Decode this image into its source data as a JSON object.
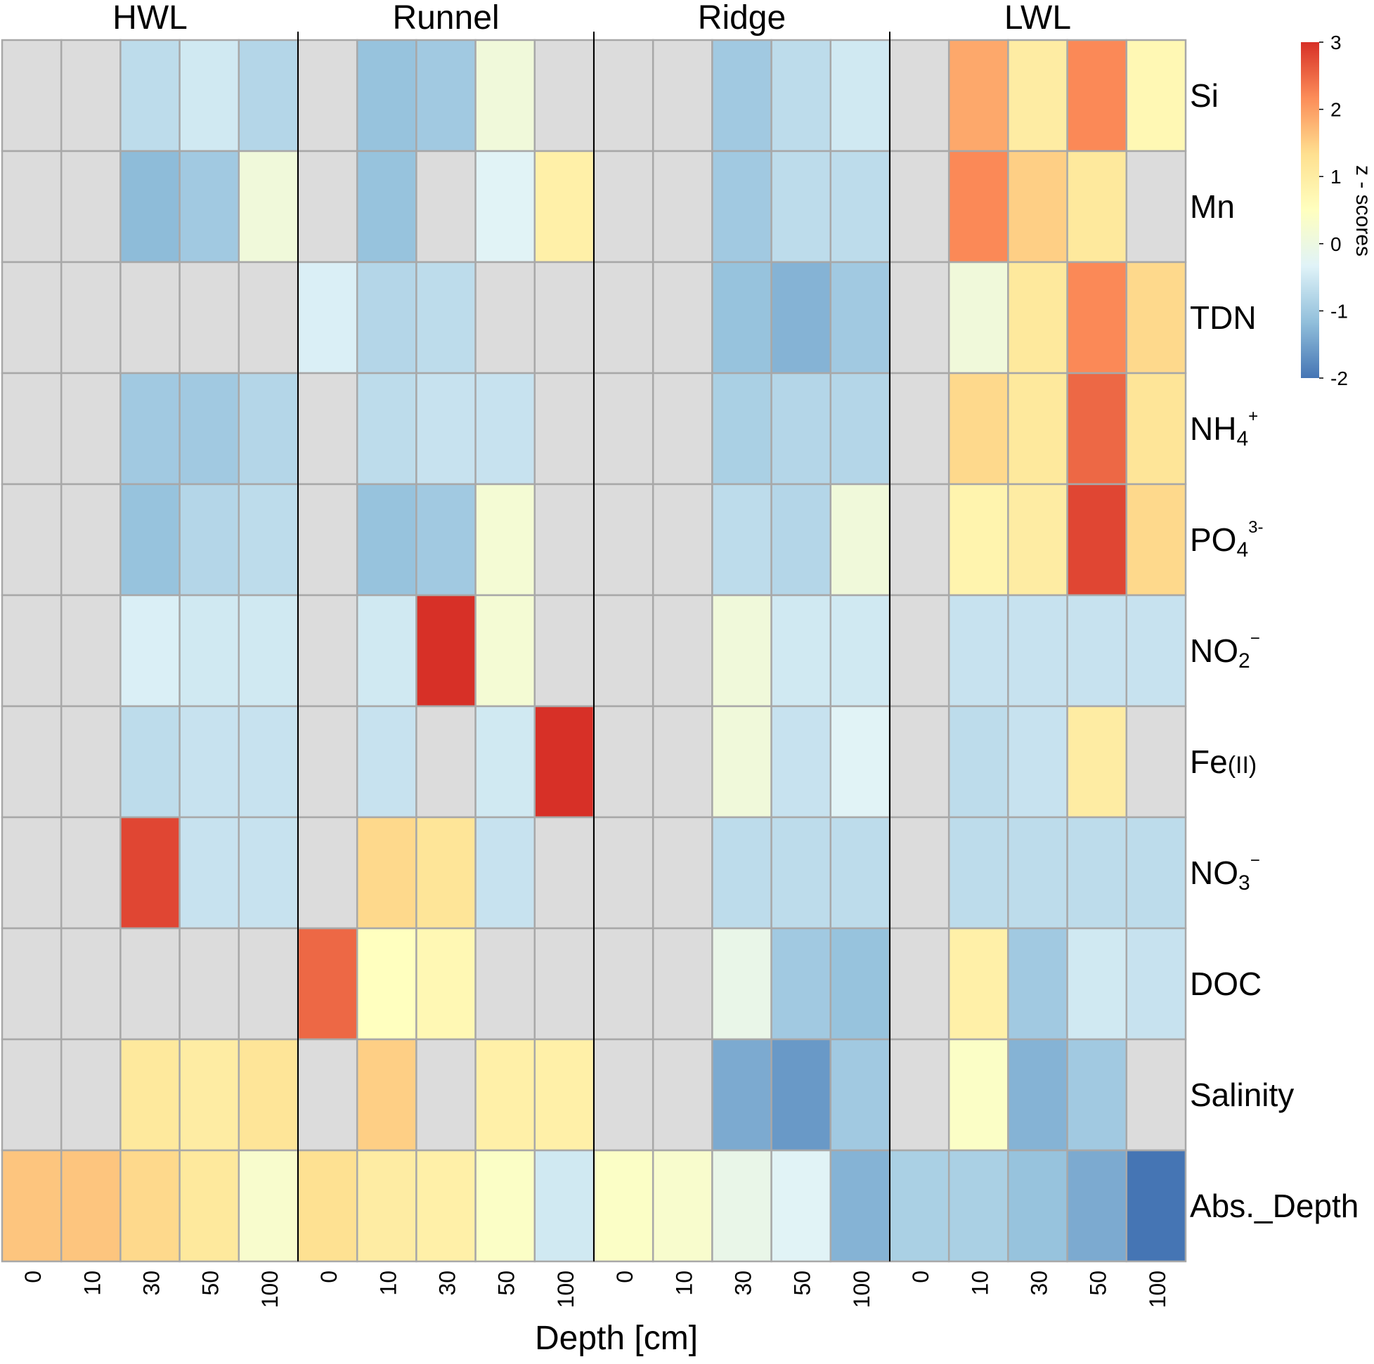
{
  "chart_data": {
    "type": "heatmap",
    "title": "",
    "xlabel": "Depth [cm]",
    "ylabel": "",
    "groups": [
      "HWL",
      "Runnel",
      "Ridge",
      "LWL"
    ],
    "depth_ticks": [
      "0",
      "10",
      "30",
      "50",
      "100"
    ],
    "rows": [
      {
        "label": "Si",
        "base": "Si",
        "sub": "",
        "sup": ""
      },
      {
        "label": "Mn",
        "base": "Mn",
        "sub": "",
        "sup": ""
      },
      {
        "label": "TDN",
        "base": "TDN",
        "sub": "",
        "sup": ""
      },
      {
        "label": "NH4+",
        "base": "NH",
        "sub": "4",
        "sup": "+"
      },
      {
        "label": "PO43-",
        "base": "PO",
        "sub": "4",
        "sup": "3-"
      },
      {
        "label": "NO2−",
        "base": "NO",
        "sub": "2",
        "sup": "−"
      },
      {
        "label": "Fe(II)",
        "base": "Fe",
        "sub": "",
        "sup": "",
        "small": "(II)"
      },
      {
        "label": "NO3−",
        "base": "NO",
        "sub": "3",
        "sup": "−"
      },
      {
        "label": "DOC",
        "base": "DOC",
        "sub": "",
        "sup": ""
      },
      {
        "label": "Salinity",
        "base": "Salinity",
        "sub": "",
        "sup": ""
      },
      {
        "label": "Abs._Depth",
        "base": "Abs._Depth",
        "sub": "",
        "sup": ""
      }
    ],
    "values": [
      [
        null,
        null,
        -0.7,
        -0.5,
        -0.8,
        null,
        -1.1,
        -1.0,
        0.1,
        null,
        null,
        null,
        -1.0,
        -0.7,
        -0.5,
        null,
        1.9,
        1.0,
        2.2,
        0.7
      ],
      [
        null,
        null,
        -1.2,
        -1.0,
        0.1,
        null,
        -1.1,
        null,
        -0.3,
        0.9,
        null,
        null,
        -1.0,
        -0.7,
        -0.7,
        null,
        2.2,
        1.5,
        1.1,
        null
      ],
      [
        null,
        null,
        null,
        null,
        null,
        -0.4,
        -0.8,
        -0.7,
        null,
        null,
        null,
        null,
        -1.1,
        -1.3,
        -1.0,
        null,
        0.1,
        1.1,
        2.2,
        1.4
      ],
      [
        null,
        null,
        -1.0,
        -1.0,
        -0.8,
        null,
        -0.7,
        -0.6,
        -0.6,
        null,
        null,
        null,
        -0.9,
        -0.8,
        -0.8,
        null,
        1.4,
        1.1,
        2.5,
        1.2
      ],
      [
        null,
        null,
        -1.1,
        -0.8,
        -0.7,
        null,
        -1.1,
        -1.0,
        0.2,
        null,
        null,
        null,
        -0.7,
        -0.8,
        0.1,
        null,
        0.8,
        1.0,
        2.8,
        1.4
      ],
      [
        null,
        null,
        -0.4,
        -0.5,
        -0.5,
        null,
        -0.5,
        3.2,
        0.2,
        null,
        null,
        null,
        0.1,
        -0.5,
        -0.5,
        null,
        -0.6,
        -0.6,
        -0.6,
        -0.6
      ],
      [
        null,
        null,
        -0.7,
        -0.6,
        -0.6,
        null,
        -0.6,
        null,
        -0.5,
        3.0,
        null,
        null,
        0.1,
        -0.6,
        -0.3,
        null,
        -0.7,
        -0.6,
        1.0,
        null
      ],
      [
        null,
        null,
        2.8,
        -0.6,
        -0.6,
        null,
        1.4,
        1.2,
        -0.6,
        null,
        null,
        null,
        -0.7,
        -0.7,
        -0.7,
        null,
        -0.7,
        -0.7,
        -0.7,
        -0.7
      ],
      [
        null,
        null,
        null,
        null,
        null,
        2.5,
        0.5,
        0.7,
        null,
        null,
        null,
        null,
        -0.1,
        -1.0,
        -1.1,
        null,
        0.9,
        -1.0,
        -0.5,
        -0.6
      ],
      [
        null,
        null,
        1.1,
        1.0,
        1.2,
        null,
        1.5,
        null,
        0.9,
        0.9,
        null,
        null,
        -1.4,
        -1.6,
        -1.0,
        null,
        0.4,
        -1.3,
        -1.0,
        null
      ],
      [
        1.6,
        1.6,
        1.4,
        1.1,
        0.3,
        1.3,
        1.0,
        0.9,
        0.4,
        -0.5,
        0.4,
        0.3,
        -0.1,
        -0.3,
        -1.3,
        -0.9,
        -0.9,
        -1.1,
        -1.4,
        -2.0
      ]
    ],
    "missing_color": "#dcdcdc",
    "colorbar": {
      "label": "z - scores",
      "min": -2,
      "max": 3,
      "ticks": [
        "3",
        "2",
        "1",
        "0",
        "-1",
        "-2"
      ],
      "stops": [
        "#4575b4",
        "#91bfdb",
        "#e0f3f8",
        "#ffffbf",
        "#fee090",
        "#fc8d59",
        "#d73027"
      ]
    }
  }
}
